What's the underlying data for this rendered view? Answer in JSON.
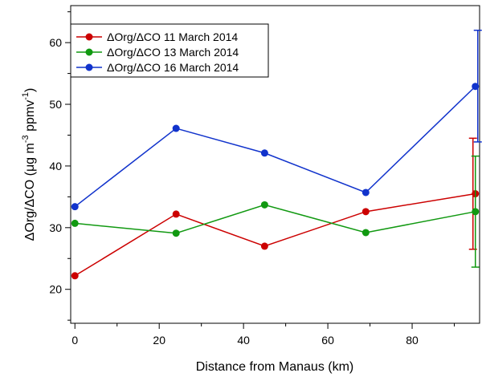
{
  "chart_data": {
    "type": "line",
    "xlabel": "Distance from Manaus (km)",
    "ylabel_parts": {
      "main": "ΔOrg/ΔCO (μg m",
      "sup1": "-3",
      "mid": " ppmv",
      "sup2": "-1",
      "end": ")"
    },
    "xlim": [
      -1,
      96
    ],
    "ylim": [
      14.5,
      66
    ],
    "xticks": [
      "0",
      "20",
      "40",
      "60",
      "80"
    ],
    "xtick_values": [
      0,
      20,
      40,
      60,
      80
    ],
    "yticks": [
      "20",
      "30",
      "40",
      "50",
      "60"
    ],
    "ytick_values": [
      20,
      30,
      40,
      50,
      60
    ],
    "legend_position": "top-left",
    "series": [
      {
        "name": "ΔOrg/ΔCO  11 March 2014",
        "color": "#cc0000",
        "x": [
          0,
          24,
          45,
          69,
          95
        ],
        "y": [
          22.2,
          32.2,
          27.0,
          32.6,
          35.5
        ],
        "error_bar": {
          "x": 95,
          "low": 26.5,
          "high": 44.5
        }
      },
      {
        "name": "ΔOrg/ΔCO  13 March 2014",
        "color": "#119911",
        "x": [
          0,
          24,
          45,
          69,
          95
        ],
        "y": [
          30.7,
          29.1,
          33.7,
          29.2,
          32.6
        ],
        "error_bar": {
          "x": 95,
          "low": 23.6,
          "high": 41.6
        }
      },
      {
        "name": "ΔOrg/ΔCO  16 March 2014",
        "color": "#1133cc",
        "x": [
          0,
          24,
          45,
          69,
          95
        ],
        "y": [
          33.4,
          46.1,
          42.1,
          35.7,
          52.9
        ],
        "error_bar": {
          "x": 95,
          "low": 43.9,
          "high": 62.0
        }
      }
    ]
  }
}
